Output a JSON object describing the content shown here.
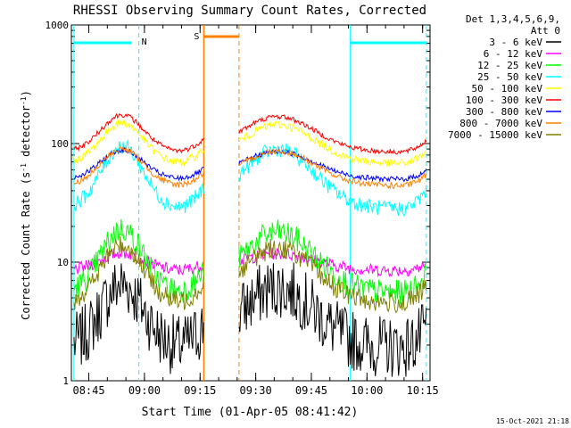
{
  "chart_data": {
    "type": "line",
    "title": "RHESSI Observing Summary Count Rates, Corrected",
    "xlabel": "Start Time (01-Apr-05 08:41:42)",
    "ylabel_main": "Corrected Count Rate (s",
    "ylabel_sup1": "-1",
    "ylabel_mid": " detector",
    "ylabel_sup2": "-1",
    "ylabel_end": ")",
    "yscale": "log",
    "ylim": [
      1,
      1000
    ],
    "y_ticks": [
      {
        "value": 1,
        "label": "1"
      },
      {
        "value": 10,
        "label": "10"
      },
      {
        "value": 100,
        "label": "100"
      },
      {
        "value": 1000,
        "label": "1000"
      }
    ],
    "xlim_minutes": [
      -0.7,
      96
    ],
    "x_ticks": [
      {
        "minute": 4,
        "label": "08:45"
      },
      {
        "minute": 19,
        "label": "09:00"
      },
      {
        "minute": 34,
        "label": "09:15"
      },
      {
        "minute": 49,
        "label": "09:30"
      },
      {
        "minute": 64,
        "label": "09:45"
      },
      {
        "minute": 79,
        "label": "10:00"
      },
      {
        "minute": 94,
        "label": "10:15"
      }
    ],
    "legend": {
      "title_line1": "Det 1,3,4,5,6,9,",
      "title_line2": "Att 0",
      "placement": "right"
    },
    "series": [
      {
        "name": "3 - 6 keV",
        "color": "#000000",
        "base": 1.9,
        "peak": 6.5,
        "noise": 0.6
      },
      {
        "name": "6 - 12 keV",
        "color": "#ff00ff",
        "base": 8.5,
        "peak": 12,
        "noise": 0.12
      },
      {
        "name": "12 - 25 keV",
        "color": "#00ff00",
        "base": 5.5,
        "peak": 19,
        "noise": 0.25
      },
      {
        "name": "25 - 50 keV",
        "color": "#00ffff",
        "base": 28,
        "peak": 95,
        "noise": 0.15
      },
      {
        "name": "50 - 100 keV",
        "color": "#ffff00",
        "base": 68,
        "peak": 150,
        "noise": 0.08
      },
      {
        "name": "100 - 300 keV",
        "color": "#ff0000",
        "base": 85,
        "peak": 175,
        "noise": 0.05
      },
      {
        "name": "300 - 800 keV",
        "color": "#0000ff",
        "base": 50,
        "peak": 88,
        "noise": 0.05
      },
      {
        "name": "800 - 7000 keV",
        "color": "#ff8000",
        "base": 44,
        "peak": 90,
        "noise": 0.06
      },
      {
        "name": "7000 - 15000 keV",
        "color": "#808000",
        "base": 4.5,
        "peak": 14,
        "noise": 0.2
      }
    ],
    "annotations": {
      "night_label": "N",
      "saa_label": "S",
      "night_color": "#00ffff",
      "saa_color": "#ff8000",
      "night_interval_1_minutes": [
        0,
        17.5
      ],
      "night_interval_2_minutes": [
        74.5,
        95
      ],
      "saa_interval_minutes": [
        35,
        44.5
      ],
      "data_segments_minutes": [
        [
          0,
          35
        ],
        [
          44.5,
          95
        ]
      ]
    }
  },
  "footer": {
    "timestamp": "15-Oct-2021 21:18"
  }
}
